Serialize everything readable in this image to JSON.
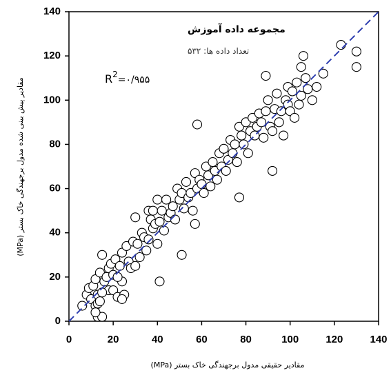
{
  "chart_data": {
    "type": "scatter",
    "annotations": {
      "title": "مجموعه داده آموزش",
      "count": "تعداد داده ها: ۵۳۲",
      "r2_base": "R",
      "r2_exponent": "2",
      "r2_value": "=۰/۹۵۵"
    },
    "xlabel": "مقادیر حقیقی مدول برجهندگی خاک بستر (MPa)",
    "ylabel": "مقادیر پیش بینی شده مدول برجهندگی خاک بستر (MPa)",
    "xlim": [
      0,
      140
    ],
    "ylim": [
      0,
      140
    ],
    "xticks": [
      0,
      20,
      40,
      60,
      80,
      100,
      120,
      140
    ],
    "yticks": [
      0,
      20,
      40,
      60,
      80,
      100,
      120,
      140
    ],
    "reference_line": {
      "x": [
        0,
        140
      ],
      "y": [
        0,
        140
      ],
      "color": "#2f3fb0"
    },
    "marker_color": "#000000",
    "x": [
      6,
      8,
      9,
      10,
      11,
      12,
      12,
      13,
      13,
      14,
      15,
      15,
      16,
      17,
      18,
      18,
      19,
      20,
      20,
      21,
      22,
      23,
      24,
      24,
      25,
      26,
      27,
      28,
      29,
      30,
      30,
      31,
      32,
      33,
      34,
      35,
      36,
      36,
      37,
      38,
      38,
      39,
      40,
      40,
      41,
      41,
      42,
      43,
      44,
      45,
      46,
      47,
      48,
      49,
      50,
      51,
      51,
      52,
      53,
      54,
      55,
      56,
      57,
      57,
      58,
      58,
      59,
      60,
      61,
      62,
      63,
      64,
      65,
      66,
      67,
      68,
      69,
      70,
      71,
      72,
      73,
      74,
      75,
      76,
      77,
      77,
      78,
      79,
      80,
      81,
      82,
      83,
      84,
      85,
      86,
      87,
      88,
      89,
      89,
      90,
      91,
      92,
      92,
      93,
      94,
      95,
      96,
      97,
      98,
      99,
      99,
      100,
      101,
      102,
      103,
      104,
      105,
      105,
      106,
      107,
      108,
      110,
      112,
      115,
      123,
      130,
      130,
      15,
      13,
      12,
      14,
      22,
      24
    ],
    "y": [
      7,
      12,
      15,
      10,
      16,
      7,
      19,
      2,
      12,
      22,
      2,
      30,
      18,
      20,
      24,
      14,
      26,
      21,
      14,
      28,
      11,
      25,
      31,
      18,
      12,
      34,
      27,
      24,
      36,
      47,
      25,
      35,
      29,
      40,
      38,
      32,
      50,
      37,
      46,
      50,
      42,
      44,
      35,
      55,
      18,
      45,
      50,
      41,
      55,
      47,
      49,
      52,
      46,
      60,
      55,
      30,
      58,
      51,
      63,
      56,
      58,
      50,
      44,
      67,
      89,
      60,
      64,
      62,
      58,
      70,
      66,
      61,
      72,
      68,
      64,
      76,
      70,
      78,
      68,
      73,
      82,
      76,
      80,
      72,
      56,
      88,
      84,
      80,
      90,
      76,
      86,
      92,
      84,
      88,
      94,
      90,
      83,
      111,
      95,
      100,
      88,
      86,
      68,
      96,
      103,
      90,
      95,
      84,
      100,
      98,
      106,
      95,
      104,
      92,
      108,
      98,
      115,
      102,
      120,
      110,
      105,
      100,
      106,
      112,
      125,
      122,
      115,
      13,
      8,
      4,
      9,
      20,
      10
    ]
  }
}
